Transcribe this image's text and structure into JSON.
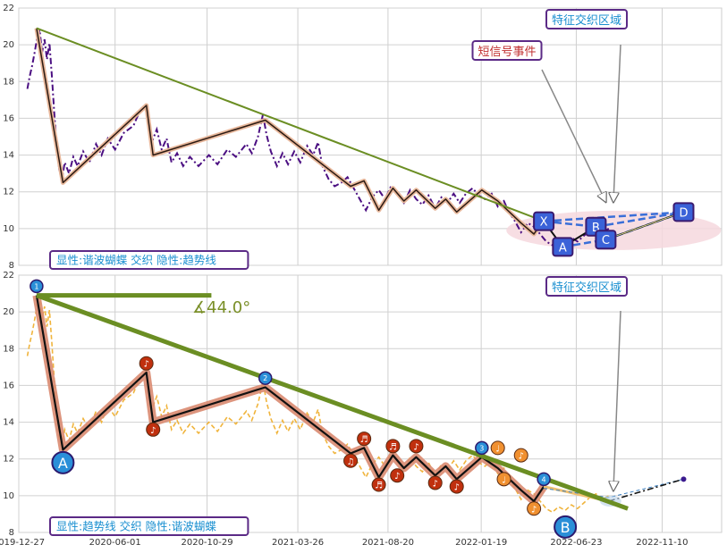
{
  "chart_data": [
    {
      "type": "line",
      "panel": "top",
      "y_ticks": [
        "22",
        "20",
        "18",
        "16",
        "14",
        "12",
        "10",
        "8"
      ],
      "ylim": [
        8,
        22
      ],
      "grid": true,
      "series": [
        {
          "kind": "price",
          "color": "#4b0f82",
          "style": "dash-dot",
          "points": [
            [
              "2020-01-10",
              17.6
            ],
            [
              "2020-01-14",
              18.3
            ],
            [
              "2020-01-18",
              18.9
            ],
            [
              "2020-01-22",
              19.6
            ],
            [
              "2020-01-26",
              20.4
            ],
            [
              "2020-01-30",
              20.8
            ],
            [
              "2020-02-03",
              19.6
            ],
            [
              "2020-02-07",
              20.3
            ],
            [
              "2020-02-11",
              19.2
            ],
            [
              "2020-02-15",
              20.1
            ],
            [
              "2020-02-19",
              18.3
            ],
            [
              "2020-02-23",
              16.2
            ],
            [
              "2020-02-27",
              14.4
            ],
            [
              "2020-03-02",
              13.2
            ],
            [
              "2020-03-06",
              12.6
            ],
            [
              "2020-03-11",
              13.6
            ],
            [
              "2020-03-18",
              13.0
            ],
            [
              "2020-03-25",
              13.9
            ],
            [
              "2020-04-01",
              13.4
            ],
            [
              "2020-04-10",
              14.2
            ],
            [
              "2020-04-20",
              13.6
            ],
            [
              "2020-05-01",
              14.6
            ],
            [
              "2020-05-10",
              14.0
            ],
            [
              "2020-05-20",
              14.9
            ],
            [
              "2020-06-01",
              14.3
            ],
            [
              "2020-06-15",
              15.2
            ],
            [
              "2020-07-01",
              15.6
            ],
            [
              "2020-07-10",
              16.3
            ],
            [
              "2020-07-20",
              16.7
            ],
            [
              "2020-07-25",
              15.9
            ],
            [
              "2020-07-31",
              14.7
            ],
            [
              "2020-08-08",
              15.4
            ],
            [
              "2020-08-16",
              14.3
            ],
            [
              "2020-08-24",
              14.9
            ],
            [
              "2020-09-01",
              13.6
            ],
            [
              "2020-09-10",
              14.1
            ],
            [
              "2020-09-20",
              13.4
            ],
            [
              "2020-10-01",
              13.9
            ],
            [
              "2020-10-15",
              13.4
            ],
            [
              "2020-11-01",
              14.0
            ],
            [
              "2020-11-15",
              13.5
            ],
            [
              "2020-12-01",
              14.3
            ],
            [
              "2020-12-15",
              13.9
            ],
            [
              "2021-01-01",
              14.6
            ],
            [
              "2021-01-10",
              14.1
            ],
            [
              "2021-01-20",
              15.0
            ],
            [
              "2021-01-28",
              16.2
            ],
            [
              "2021-02-03",
              15.1
            ],
            [
              "2021-02-10",
              14.2
            ],
            [
              "2021-02-20",
              13.4
            ],
            [
              "2021-03-01",
              14.1
            ],
            [
              "2021-03-10",
              13.5
            ],
            [
              "2021-03-20",
              14.2
            ],
            [
              "2021-03-30",
              13.6
            ],
            [
              "2021-04-10",
              14.5
            ],
            [
              "2021-04-20",
              14.0
            ],
            [
              "2021-04-28",
              14.7
            ],
            [
              "2021-05-05",
              13.4
            ],
            [
              "2021-05-15",
              12.7
            ],
            [
              "2021-05-25",
              12.3
            ],
            [
              "2021-06-05",
              12.5
            ],
            [
              "2021-06-15",
              12.8
            ],
            [
              "2021-06-25",
              12.2
            ],
            [
              "2021-07-05",
              11.6
            ],
            [
              "2021-07-15",
              11.0
            ],
            [
              "2021-07-25",
              11.7
            ],
            [
              "2021-08-05",
              12.1
            ],
            [
              "2021-08-15",
              11.6
            ],
            [
              "2021-08-25",
              12.3
            ],
            [
              "2021-09-05",
              11.8
            ],
            [
              "2021-09-15",
              11.4
            ],
            [
              "2021-09-25",
              12.1
            ],
            [
              "2021-10-05",
              11.6
            ],
            [
              "2021-10-15",
              11.3
            ],
            [
              "2021-10-25",
              11.8
            ],
            [
              "2021-11-05",
              11.1
            ],
            [
              "2021-11-15",
              11.7
            ],
            [
              "2021-11-25",
              11.4
            ],
            [
              "2021-12-05",
              11.9
            ],
            [
              "2021-12-15",
              11.4
            ],
            [
              "2021-12-25",
              11.9
            ],
            [
              "2022-01-05",
              12.2
            ],
            [
              "2022-01-15",
              11.8
            ],
            [
              "2022-01-25",
              11.6
            ],
            [
              "2022-02-05",
              11.9
            ],
            [
              "2022-02-15",
              11.2
            ],
            [
              "2022-02-25",
              11.5
            ],
            [
              "2022-03-05",
              10.9
            ],
            [
              "2022-03-15",
              10.4
            ],
            [
              "2022-03-25",
              9.8
            ],
            [
              "2022-04-05",
              10.3
            ],
            [
              "2022-04-15",
              10.1
            ],
            [
              "2022-04-25",
              9.7
            ],
            [
              "2022-05-05",
              9.3
            ],
            [
              "2022-05-15",
              9.1
            ],
            [
              "2022-05-25",
              9.4
            ],
            [
              "2022-06-05",
              9.2
            ],
            [
              "2022-06-15",
              9.5
            ],
            [
              "2022-06-25",
              9.3
            ],
            [
              "2022-07-05",
              9.6
            ],
            [
              "2022-07-15",
              9.9
            ],
            [
              "2022-07-25",
              10.1
            ],
            [
              "2022-08-05",
              9.8
            ],
            [
              "2022-08-15",
              10.0
            ]
          ]
        },
        {
          "kind": "harmonic-zigzag",
          "color": "#2b1a12",
          "halo": "#e8b89c",
          "points": [
            [
              "2020-01-25",
              20.9
            ],
            [
              "2020-03-08",
              12.5
            ],
            [
              "2020-07-22",
              16.7
            ],
            [
              "2020-08-02",
              14.0
            ],
            [
              "2021-02-01",
              15.9
            ],
            [
              "2021-06-20",
              12.3
            ],
            [
              "2021-07-12",
              12.6
            ],
            [
              "2021-08-05",
              11.0
            ],
            [
              "2021-08-28",
              12.2
            ],
            [
              "2021-09-15",
              11.5
            ],
            [
              "2021-10-05",
              12.1
            ],
            [
              "2021-11-05",
              11.1
            ],
            [
              "2021-11-22",
              11.6
            ],
            [
              "2021-12-10",
              10.9
            ],
            [
              "2022-01-20",
              12.1
            ],
            [
              "2022-02-15",
              11.5
            ],
            [
              "2022-03-25",
              10.3
            ],
            [
              "2022-04-15",
              9.7
            ],
            [
              "2022-05-01",
              10.5
            ]
          ]
        },
        {
          "kind": "trend-line",
          "color": "#6b8e23",
          "points": [
            [
              "2020-01-25",
              20.9
            ],
            [
              "2022-05-01",
              10.4
            ]
          ]
        }
      ],
      "pattern": {
        "points": [
          {
            "label": "X",
            "x": "2022-05-01",
            "y": 10.4
          },
          {
            "label": "A",
            "x": "2022-06-01",
            "y": 9.0
          },
          {
            "label": "B",
            "x": "2022-07-25",
            "y": 10.1
          },
          {
            "label": "C",
            "x": "2022-08-10",
            "y": 9.4
          },
          {
            "label": "D",
            "x": "2022-12-15",
            "y": 10.9
          }
        ],
        "ellipse_color": "#f6d8de",
        "dash_color": "#3a6fd8"
      },
      "annotations": {
        "feature_zone": "特征交织区域",
        "short_signal": "短信号事件"
      },
      "legend": "显性:谐波蝴蝶 交织 隐性:趋势线"
    },
    {
      "type": "line",
      "panel": "bottom",
      "x_ticks": [
        "2019-12-27",
        "2020-06-01",
        "2020-10-29",
        "2021-03-26",
        "2021-08-20",
        "2022-01-19",
        "2022-06-23",
        "2022-11-10"
      ],
      "y_ticks": [
        "22",
        "20",
        "18",
        "16",
        "14",
        "12",
        "10",
        "8"
      ],
      "xlim": [
        "2019-12-27",
        "2023-02-15"
      ],
      "ylim": [
        8,
        22
      ],
      "grid": true,
      "series": [
        {
          "kind": "price",
          "color": "#f0b43c",
          "style": "dash"
        },
        {
          "kind": "harmonic-zigzag",
          "color": "#111111",
          "halo": "#d98a70"
        },
        {
          "kind": "trend-line",
          "color": "#6b8e23",
          "points": [
            [
              "2020-01-25",
              20.9
            ],
            [
              "2022-09-15",
              9.3
            ]
          ]
        },
        {
          "kind": "horizontal",
          "color": "#6b8e23",
          "points": [
            [
              "2020-01-25",
              20.9
            ],
            [
              "2020-11-05",
              20.9
            ]
          ]
        },
        {
          "kind": "projection",
          "color": "#111111",
          "style": "dash-dot",
          "points": [
            [
              "2022-08-15",
              9.7
            ],
            [
              "2022-12-15",
              10.9
            ]
          ]
        },
        {
          "kind": "projection",
          "color": "#3a7fc0",
          "style": "dash",
          "points": [
            [
              "2022-05-01",
              10.4
            ],
            [
              "2022-08-15",
              9.9
            ],
            [
              "2022-12-15",
              10.9
            ]
          ]
        }
      ],
      "angle_label": "∡44.0°",
      "anchor_labels": [
        {
          "text": "1",
          "x": "2020-01-25",
          "y": 21.4,
          "color": "#2a8fd8"
        },
        {
          "text": "2",
          "x": "2021-02-01",
          "y": 16.4,
          "color": "#2a8fd8"
        },
        {
          "text": "3",
          "x": "2022-01-20",
          "y": 12.6,
          "color": "#2a8fd8"
        },
        {
          "text": "4",
          "x": "2022-05-01",
          "y": 10.9,
          "color": "#2a8fd8"
        }
      ],
      "note_markers": [
        {
          "text": "♪",
          "x": "2020-07-22",
          "y": 17.2,
          "color": "#c0300e"
        },
        {
          "text": "♪",
          "x": "2020-08-02",
          "y": 13.6,
          "color": "#c0300e"
        },
        {
          "text": "♫",
          "x": "2021-06-20",
          "y": 11.9,
          "color": "#c0300e"
        },
        {
          "text": "♬",
          "x": "2021-07-12",
          "y": 13.1,
          "color": "#c0300e"
        },
        {
          "text": "♬",
          "x": "2021-08-05",
          "y": 10.6,
          "color": "#c0300e"
        },
        {
          "text": "♬",
          "x": "2021-08-28",
          "y": 12.7,
          "color": "#c0300e"
        },
        {
          "text": "♪",
          "x": "2021-09-04",
          "y": 11.1,
          "color": "#c0300e"
        },
        {
          "text": "♪",
          "x": "2021-10-05",
          "y": 12.7,
          "color": "#c0300e"
        },
        {
          "text": "♪",
          "x": "2021-11-05",
          "y": 10.7,
          "color": "#c0300e"
        },
        {
          "text": "♪",
          "x": "2021-12-10",
          "y": 10.5,
          "color": "#c0300e"
        },
        {
          "text": "♩",
          "x": "2022-02-15",
          "y": 12.6,
          "color": "#f09030"
        },
        {
          "text": "♩",
          "x": "2022-02-25",
          "y": 10.9,
          "color": "#f09030"
        },
        {
          "text": "♪",
          "x": "2022-03-25",
          "y": 12.2,
          "color": "#f09030"
        },
        {
          "text": "♪",
          "x": "2022-04-15",
          "y": 9.3,
          "color": "#f09030"
        }
      ],
      "point_labels": [
        {
          "text": "A",
          "x": "2020-03-08",
          "y": 11.8
        },
        {
          "text": "B",
          "x": "2022-06-05",
          "y": 8.3
        }
      ],
      "annotations": {
        "feature_zone": "特征交织区域"
      },
      "legend": "显性:趋势线 交织 隐性:谐波蝴蝶"
    }
  ]
}
